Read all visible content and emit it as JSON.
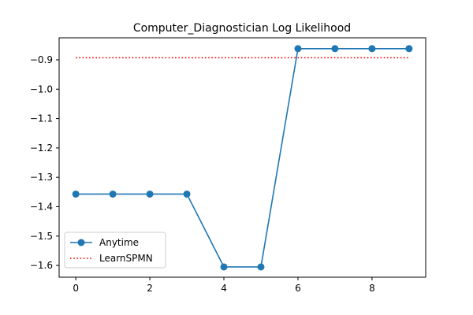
{
  "chart_data": {
    "type": "line",
    "title": "Computer_Diagnostician Log Likelihood",
    "xlabel": "",
    "ylabel": "",
    "xlim": [
      -0.45,
      9.45
    ],
    "ylim": [
      -1.64,
      -0.825
    ],
    "xticks": [
      0,
      2,
      4,
      6,
      8
    ],
    "yticks": [
      -1.6,
      -1.5,
      -1.4,
      -1.3,
      -1.2,
      -1.1,
      -1.0,
      -0.9
    ],
    "ytick_labels": [
      "−1.6",
      "−1.5",
      "−1.4",
      "−1.3",
      "−1.2",
      "−1.1",
      "−1.0",
      "−0.9"
    ],
    "grid": false,
    "legend_position": "lower-left",
    "series": [
      {
        "name": "Anytime",
        "style": "solid-line-circle-markers",
        "color": "#1f77b4",
        "x": [
          0,
          1,
          2,
          3,
          4,
          5,
          6,
          7,
          8,
          9
        ],
        "y": [
          -1.357,
          -1.357,
          -1.357,
          -1.357,
          -1.605,
          -1.605,
          -0.862,
          -0.862,
          -0.862,
          -0.862
        ]
      },
      {
        "name": "LearnSPMN",
        "style": "dotted-line",
        "color": "#ff0000",
        "x": [
          0,
          9
        ],
        "y": [
          -0.893,
          -0.893
        ]
      }
    ]
  }
}
